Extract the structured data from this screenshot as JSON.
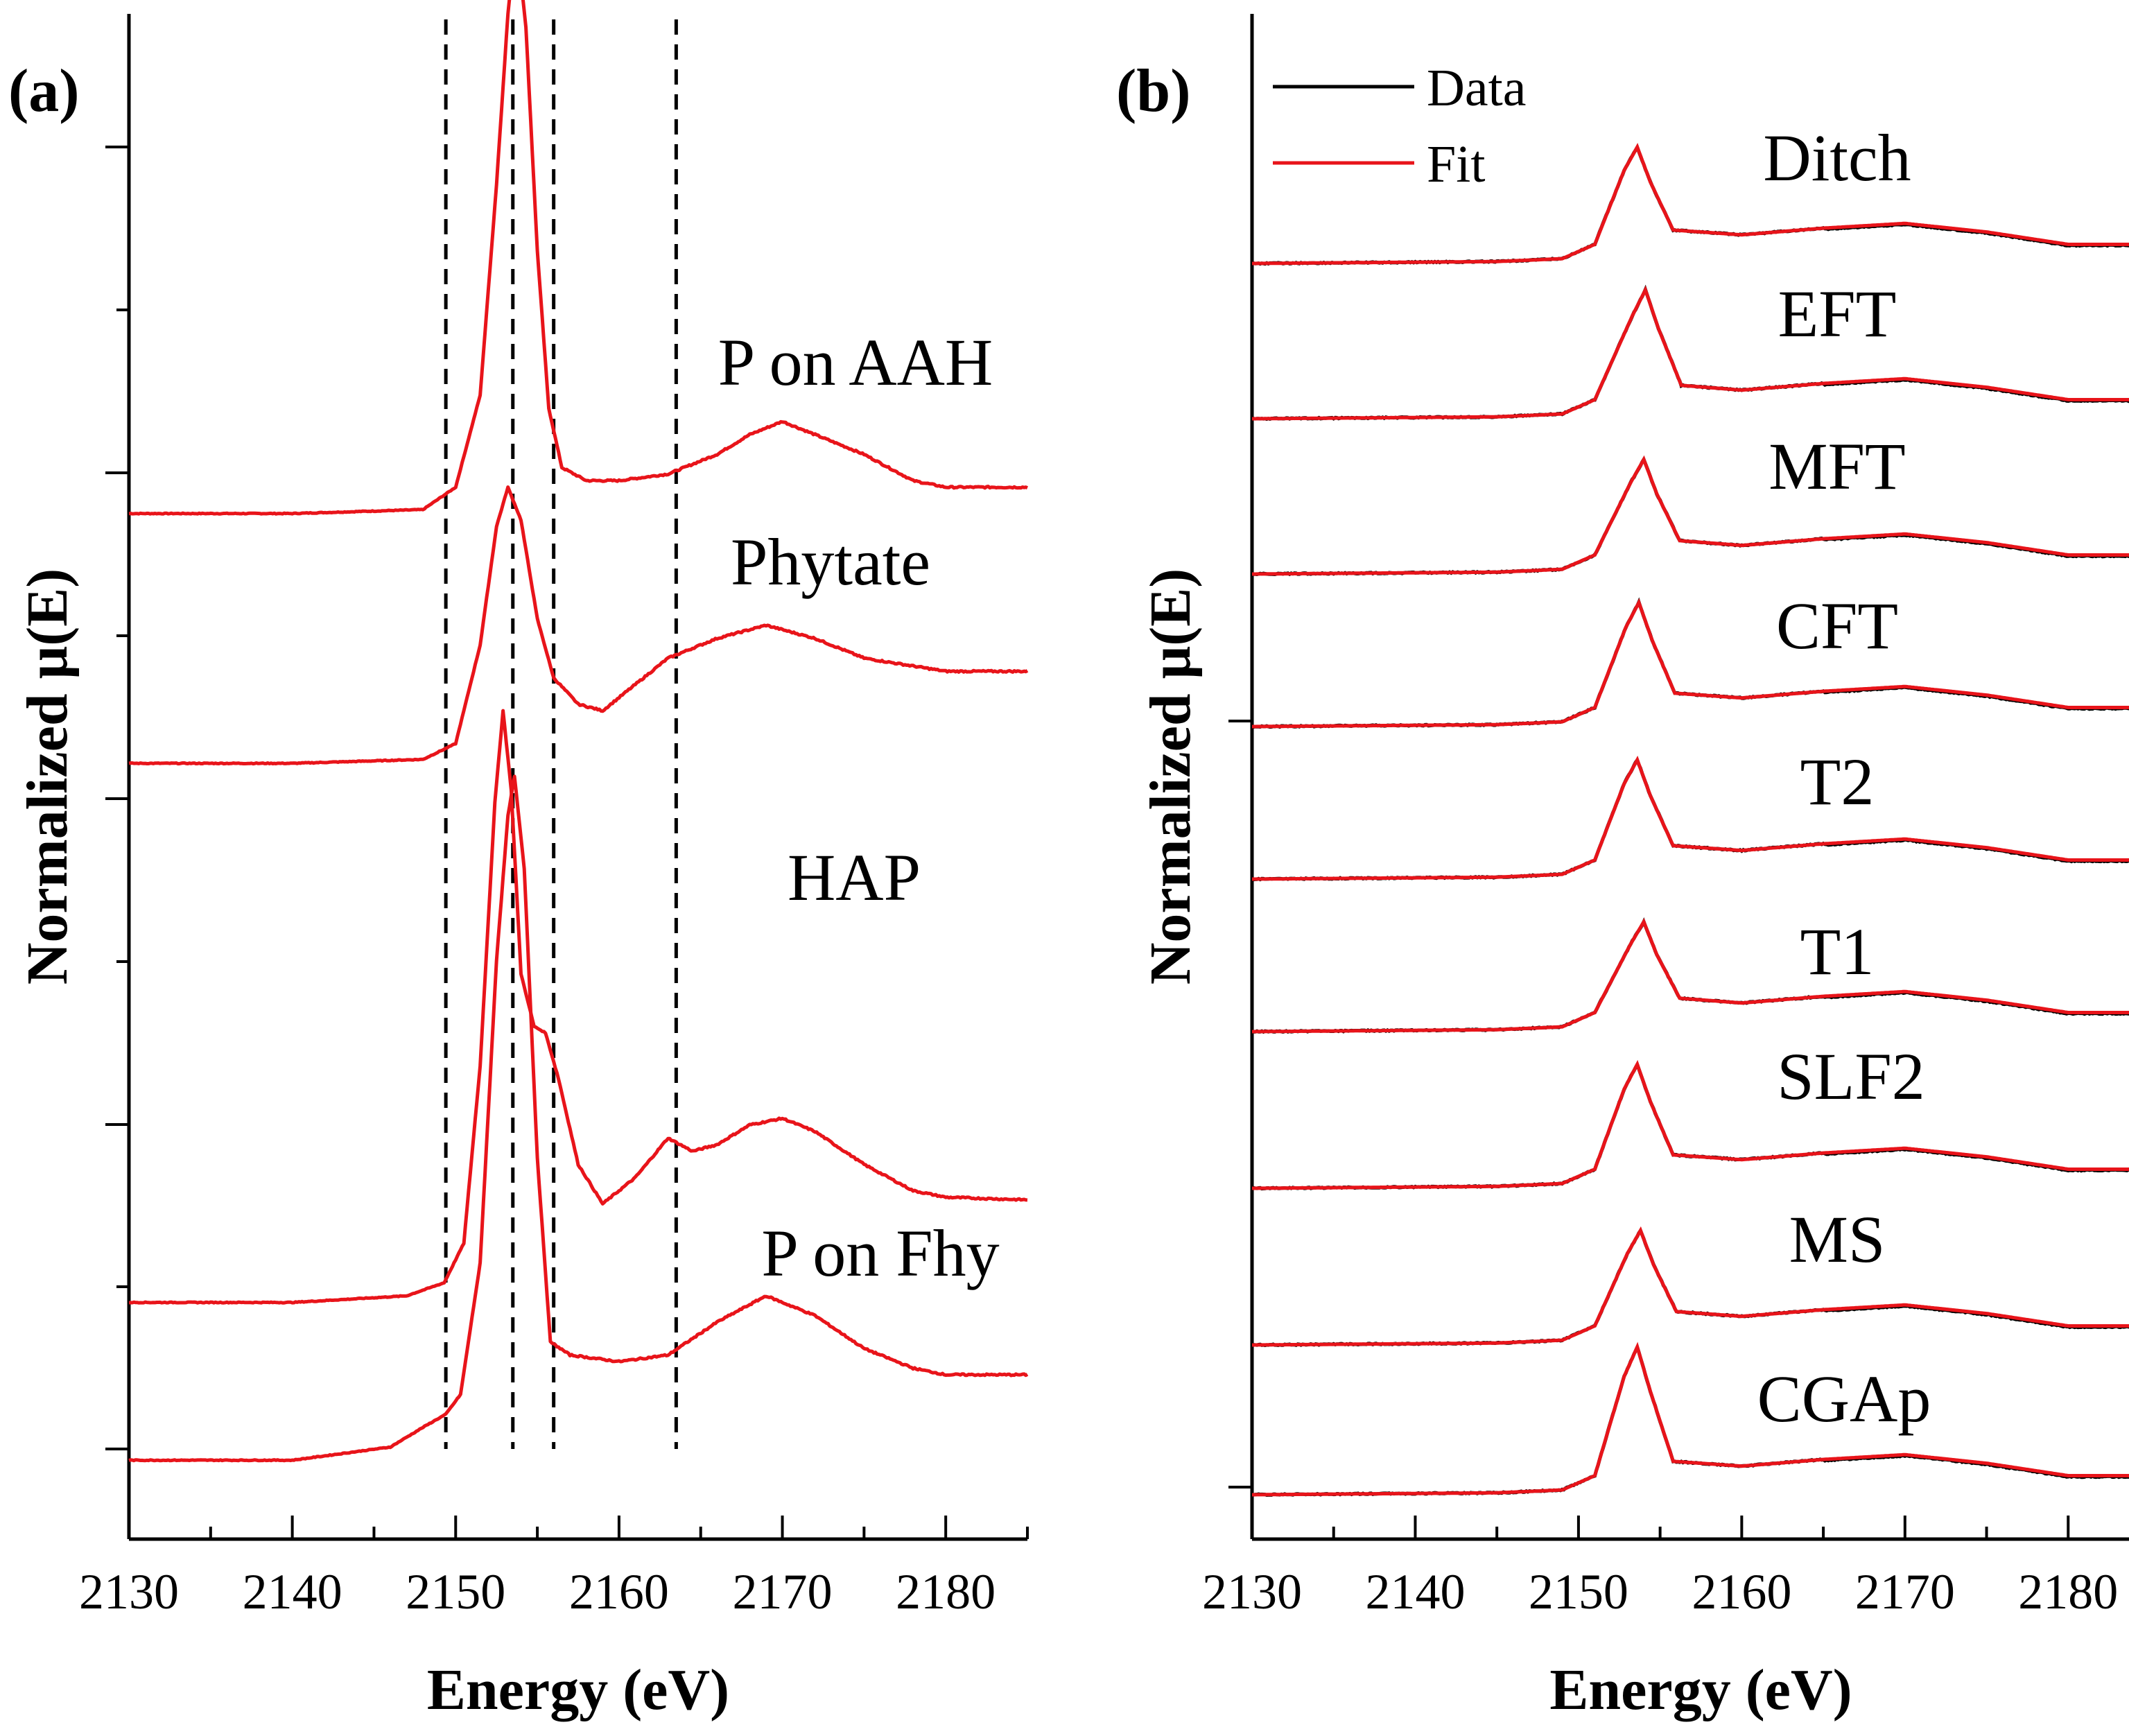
{
  "figure": {
    "colors": {
      "data": "#000000",
      "fit": "#e8141a",
      "axis": "#000000"
    }
  },
  "chart_data": [
    {
      "type": "line",
      "panel_label": "(a)",
      "xlabel": "Energy (eV)",
      "ylabel": "Normalized μ(E)",
      "xlim": [
        2130,
        2185
      ],
      "xticks": [
        "2130",
        "2140",
        "2150",
        "2160",
        "2170",
        "2180"
      ],
      "grid": false,
      "legend": null,
      "reference_lines_x": [
        2149.4,
        2153.5,
        2156.0,
        2163.5
      ],
      "series": [
        {
          "name": "P on AAH",
          "offset": 7.2,
          "peak_x": 2153.7,
          "peak_height": 4.4,
          "points": [
            [
              2130,
              0
            ],
            [
              2140,
              0
            ],
            [
              2148,
              0.03
            ],
            [
              2150,
              0.2
            ],
            [
              2151.5,
              0.9
            ],
            [
              2152.5,
              2.5
            ],
            [
              2153.2,
              3.8
            ],
            [
              2153.7,
              4.4
            ],
            [
              2154.3,
              3.7
            ],
            [
              2155,
              2.0
            ],
            [
              2155.7,
              0.8
            ],
            [
              2156.5,
              0.35
            ],
            [
              2158,
              0.25
            ],
            [
              2160,
              0.25
            ],
            [
              2163,
              0.3
            ],
            [
              2166,
              0.45
            ],
            [
              2168,
              0.6
            ],
            [
              2170,
              0.7
            ],
            [
              2172,
              0.6
            ],
            [
              2175,
              0.45
            ],
            [
              2178,
              0.25
            ],
            [
              2180,
              0.2
            ],
            [
              2185,
              0.2
            ]
          ]
        },
        {
          "name": "Phytate",
          "offset": 5.3,
          "peak_x": 2153.2,
          "peak_height": 2.1,
          "points": [
            [
              2130,
              0
            ],
            [
              2140,
              0
            ],
            [
              2148,
              0.03
            ],
            [
              2150,
              0.15
            ],
            [
              2151.5,
              0.9
            ],
            [
              2152.5,
              1.8
            ],
            [
              2153.2,
              2.1
            ],
            [
              2154,
              1.85
            ],
            [
              2155,
              1.1
            ],
            [
              2156,
              0.65
            ],
            [
              2157.5,
              0.45
            ],
            [
              2159,
              0.4
            ],
            [
              2161,
              0.6
            ],
            [
              2163,
              0.8
            ],
            [
              2166,
              0.95
            ],
            [
              2169,
              1.05
            ],
            [
              2172,
              0.95
            ],
            [
              2175,
              0.8
            ],
            [
              2180,
              0.7
            ],
            [
              2185,
              0.7
            ]
          ]
        },
        {
          "name": "HAP",
          "offset": 1.2,
          "peak_x": 2152.9,
          "peak_height": 4.5,
          "points": [
            [
              2130,
              0
            ],
            [
              2140,
              0
            ],
            [
              2147,
              0.05
            ],
            [
              2149.3,
              0.15
            ],
            [
              2150.5,
              0.45
            ],
            [
              2151.5,
              1.8
            ],
            [
              2152.4,
              3.8
            ],
            [
              2152.9,
              4.5
            ],
            [
              2153.4,
              3.9
            ],
            [
              2154,
              2.5
            ],
            [
              2154.8,
              2.1
            ],
            [
              2155.5,
              2.05
            ],
            [
              2156.3,
              1.7
            ],
            [
              2157.5,
              1.05
            ],
            [
              2159,
              0.75
            ],
            [
              2161,
              0.95
            ],
            [
              2163,
              1.25
            ],
            [
              2164.5,
              1.15
            ],
            [
              2166,
              1.2
            ],
            [
              2168,
              1.35
            ],
            [
              2170,
              1.4
            ],
            [
              2172,
              1.3
            ],
            [
              2175,
              1.05
            ],
            [
              2178,
              0.85
            ],
            [
              2180,
              0.8
            ],
            [
              2185,
              0.78
            ]
          ]
        },
        {
          "name": "P on Fhy",
          "offset": 0,
          "peak_x": 2153.6,
          "peak_height": 5.2,
          "points": [
            [
              2130,
              0
            ],
            [
              2140,
              0
            ],
            [
              2146,
              0.1
            ],
            [
              2148,
              0.25
            ],
            [
              2149.4,
              0.35
            ],
            [
              2150.3,
              0.5
            ],
            [
              2151.5,
              1.5
            ],
            [
              2152.5,
              3.8
            ],
            [
              2153.2,
              4.9
            ],
            [
              2153.6,
              5.2
            ],
            [
              2154.2,
              4.5
            ],
            [
              2155,
              2.3
            ],
            [
              2155.8,
              0.9
            ],
            [
              2157,
              0.8
            ],
            [
              2160,
              0.75
            ],
            [
              2163,
              0.8
            ],
            [
              2166,
              1.05
            ],
            [
              2169,
              1.25
            ],
            [
              2172,
              1.1
            ],
            [
              2175,
              0.85
            ],
            [
              2178,
              0.7
            ],
            [
              2180,
              0.65
            ],
            [
              2185,
              0.65
            ]
          ]
        }
      ]
    },
    {
      "type": "line",
      "panel_label": "(b)",
      "xlabel": "Energy (eV)",
      "ylabel": "Normalized μ(E)",
      "xlim": [
        2130,
        2185
      ],
      "xticks": [
        "2130",
        "2140",
        "2150",
        "2160",
        "2170",
        "2180"
      ],
      "grid": false,
      "legend": {
        "position": "top-left",
        "entries": [
          "Data",
          "Fit"
        ]
      },
      "series_names": [
        "Ditch",
        "EFT",
        "MFT",
        "CFT",
        "T2",
        "T1",
        "SLF2",
        "MS",
        "CGAp"
      ],
      "samples": [
        {
          "name": "Ditch",
          "offset": 8,
          "peak_x": 2153.6,
          "peak_height": 1.22,
          "edge_step": 0.2,
          "post_hump": 0.1
        },
        {
          "name": "EFT",
          "offset": 7,
          "peak_x": 2154.1,
          "peak_height": 1.35,
          "edge_step": 0.2,
          "post_hump": 0.1
        },
        {
          "name": "MFT",
          "offset": 6,
          "peak_x": 2154.0,
          "peak_height": 1.2,
          "edge_step": 0.2,
          "post_hump": 0.1
        },
        {
          "name": "CFT",
          "offset": 5,
          "peak_x": 2153.7,
          "peak_height": 1.3,
          "edge_step": 0.2,
          "post_hump": 0.1
        },
        {
          "name": "T2",
          "offset": 4,
          "peak_x": 2153.6,
          "peak_height": 1.25,
          "edge_step": 0.2,
          "post_hump": 0.1
        },
        {
          "name": "T1",
          "offset": 3,
          "peak_x": 2154.0,
          "peak_height": 1.15,
          "edge_step": 0.2,
          "post_hump": 0.1
        },
        {
          "name": "SLF2",
          "offset": 2,
          "peak_x": 2153.6,
          "peak_height": 1.3,
          "edge_step": 0.2,
          "post_hump": 0.1
        },
        {
          "name": "MS",
          "offset": 1,
          "peak_x": 2153.8,
          "peak_height": 1.2,
          "edge_step": 0.2,
          "post_hump": 0.1
        },
        {
          "name": "CGAp",
          "offset": 0,
          "peak_x": 2153.6,
          "peak_height": 1.55,
          "edge_step": 0.2,
          "post_hump": 0.1
        }
      ]
    }
  ]
}
